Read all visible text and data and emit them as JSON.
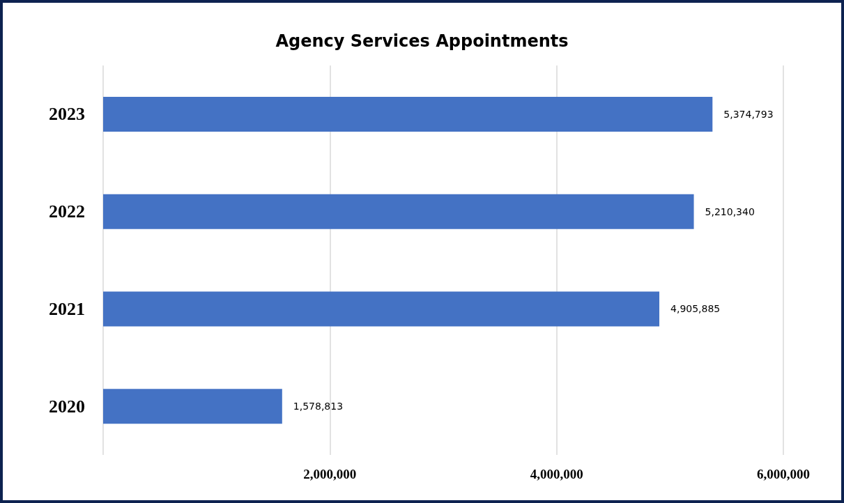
{
  "chart_data": {
    "type": "bar",
    "orientation": "horizontal",
    "title": "Agency Services Appointments",
    "categories": [
      "2023",
      "2022",
      "2021",
      "2020"
    ],
    "values": [
      5374793,
      5210340,
      4905885,
      1578813
    ],
    "color": "#4472c4",
    "xlim": [
      0,
      6000000
    ],
    "xticks": [
      {
        "value": 0,
        "label": null
      },
      {
        "value": 2000000,
        "label": "2,000,000"
      },
      {
        "value": 4000000,
        "label": "4,000,000"
      },
      {
        "value": 6000000,
        "label": "6,000,000"
      }
    ],
    "value_labels": [
      "5,374,793",
      "5,210,340",
      "4,905,885",
      "1,578,813"
    ],
    "grid": "x"
  }
}
